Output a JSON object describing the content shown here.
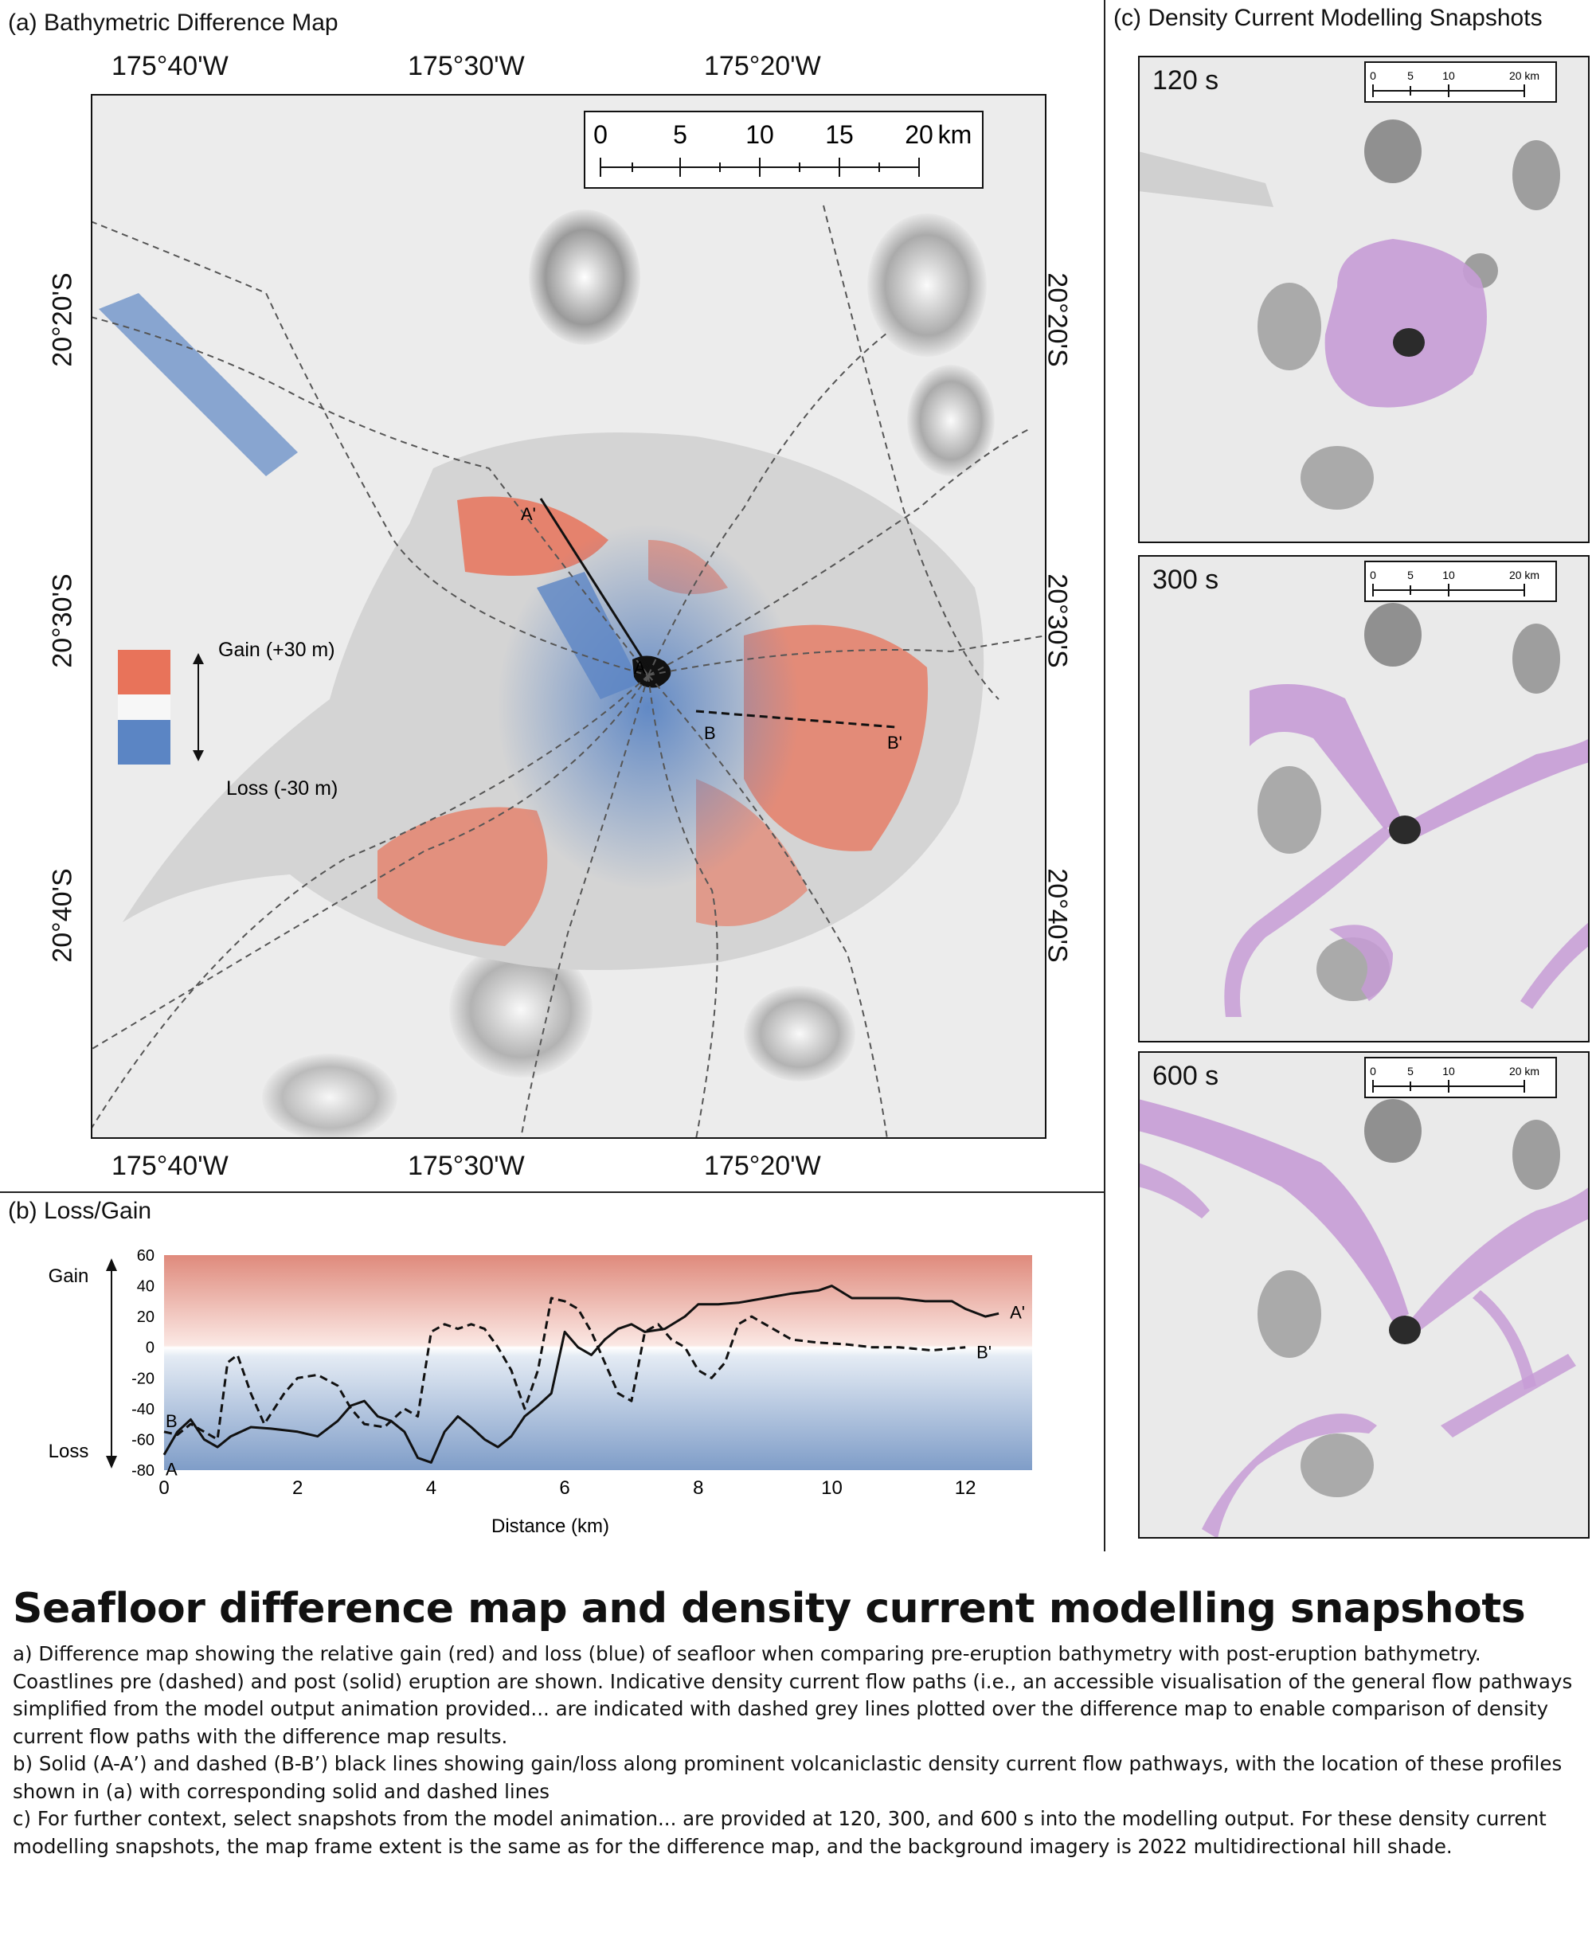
{
  "panel_a": {
    "title": "(a)  Bathymetric Difference Map",
    "top_lon_labels": [
      "175°40'W",
      "175°30'W",
      "175°20'W"
    ],
    "bottom_lon_labels": [
      "175°40'W",
      "175°30'W",
      "175°20'W"
    ],
    "lat_labels": [
      "20°20'S",
      "20°30'S",
      "20°40'S"
    ],
    "scale_labels": [
      "0",
      "5",
      "10",
      "15",
      "20",
      "km"
    ],
    "legend": {
      "gain": "Gain (+30 m)",
      "loss": "Loss (-30 m)"
    },
    "profile_labels": {
      "a": "A",
      "a_prime": "A'",
      "b": "B",
      "b_prime": "B'"
    },
    "colors": {
      "gain": "#e8735a",
      "loss": "#5b85c4",
      "surface": "#d4d4d4",
      "hillshade": "#e9e9e9"
    }
  },
  "panel_b": {
    "title": "(b)  Loss/Gain"
  },
  "panel_c": {
    "title": "(c)  Density Current Modelling Snapshots",
    "scale_labels": [
      "0",
      "5",
      "10",
      "20 km"
    ],
    "snapshots": [
      {
        "label": "120 s"
      },
      {
        "label": "300 s"
      },
      {
        "label": "600 s"
      }
    ],
    "colors": {
      "current": "#c79cd6"
    }
  },
  "chart_data": {
    "type": "line",
    "xlabel": "Distance (km)",
    "ylabel": "",
    "xlim": [
      0,
      13
    ],
    "ylim": [
      -80,
      60
    ],
    "x_ticks": [
      0,
      2,
      4,
      6,
      8,
      10,
      12
    ],
    "y_ticks": [
      60,
      40,
      20,
      0,
      -20,
      -40,
      -60,
      -80
    ],
    "gain_label": "Gain",
    "loss_label": "Loss",
    "series": [
      {
        "name": "A-A'",
        "style": "solid",
        "start_label": "A",
        "end_label": "A'",
        "x": [
          0,
          0.2,
          0.4,
          0.6,
          0.8,
          1.0,
          1.3,
          1.6,
          2.0,
          2.3,
          2.6,
          2.8,
          3.0,
          3.2,
          3.4,
          3.6,
          3.8,
          4.0,
          4.2,
          4.4,
          4.6,
          4.8,
          5.0,
          5.2,
          5.4,
          5.6,
          5.8,
          6.0,
          6.2,
          6.4,
          6.6,
          6.8,
          7.0,
          7.2,
          7.5,
          7.8,
          8.0,
          8.3,
          8.6,
          9.0,
          9.4,
          9.8,
          10.0,
          10.3,
          10.6,
          11.0,
          11.4,
          11.8,
          12.0,
          12.3,
          12.5
        ],
        "y": [
          -70,
          -55,
          -47,
          -60,
          -65,
          -58,
          -52,
          -53,
          -55,
          -58,
          -48,
          -38,
          -35,
          -45,
          -48,
          -55,
          -72,
          -75,
          -55,
          -45,
          -52,
          -60,
          -65,
          -58,
          -45,
          -38,
          -30,
          10,
          0,
          -5,
          5,
          12,
          15,
          10,
          12,
          20,
          28,
          28,
          29,
          32,
          35,
          37,
          40,
          32,
          32,
          32,
          30,
          30,
          25,
          20,
          22
        ]
      },
      {
        "name": "B-B'",
        "style": "dashed",
        "start_label": "B",
        "end_label": "B'",
        "x": [
          0,
          0.2,
          0.4,
          0.6,
          0.8,
          0.95,
          1.1,
          1.3,
          1.5,
          1.8,
          2.0,
          2.3,
          2.6,
          2.8,
          3.0,
          3.3,
          3.6,
          3.8,
          4.0,
          4.2,
          4.4,
          4.6,
          4.8,
          5.0,
          5.2,
          5.4,
          5.6,
          5.8,
          6.0,
          6.2,
          6.4,
          6.6,
          6.8,
          7.0,
          7.2,
          7.4,
          7.6,
          7.8,
          8.0,
          8.2,
          8.4,
          8.6,
          8.8,
          9.0,
          9.4,
          9.8,
          10.2,
          10.6,
          11.0,
          11.5,
          12.0
        ],
        "y": [
          -55,
          -57,
          -50,
          -55,
          -60,
          -10,
          -5,
          -30,
          -50,
          -30,
          -20,
          -18,
          -25,
          -40,
          -50,
          -52,
          -40,
          -45,
          10,
          15,
          12,
          15,
          12,
          0,
          -15,
          -40,
          -15,
          32,
          30,
          25,
          10,
          -10,
          -30,
          -35,
          10,
          15,
          5,
          0,
          -15,
          -20,
          -10,
          15,
          20,
          15,
          5,
          3,
          2,
          0,
          0,
          -2,
          0
        ]
      }
    ]
  },
  "caption": {
    "title": "Seafloor difference map and density current modelling snapshots",
    "paragraphs": [
      "a) Difference map showing the relative gain (red) and loss (blue) of seafloor when comparing pre-eruption bathymetry with post-eruption bathymetry. Coastlines pre (dashed) and post (solid) eruption are shown. Indicative density current flow paths (i.e., an accessible visualisation of the general flow pathways simplified from the model output animation provided... are indicated with dashed grey lines plotted over the difference map to enable comparison of density current flow paths with the difference map results.",
      "b) Solid (A-A’) and dashed (B-B’) black lines showing gain/loss along prominent volcaniclastic density current flow pathways, with the location of these profiles shown in (a) with corresponding solid and dashed lines",
      "c) For further context, select snapshots from the model animation... are provided at 120, 300, and 600 s into the modelling output. For these density current modelling snapshots, the map frame extent is the same as for the difference map, and the background imagery is 2022 multidirectional hill shade."
    ]
  }
}
